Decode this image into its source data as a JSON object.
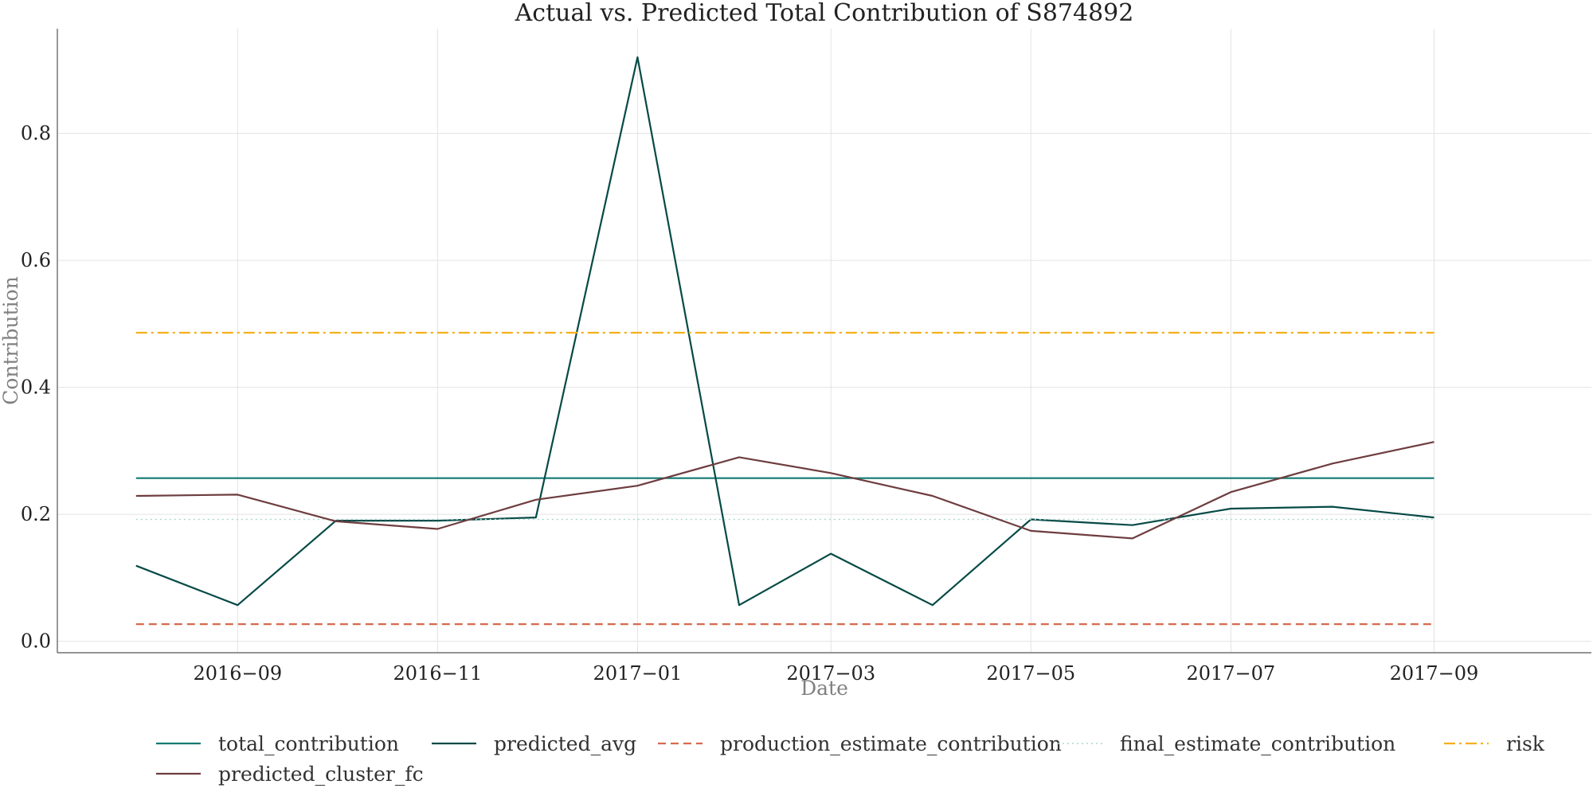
{
  "chart_data": {
    "type": "line",
    "title": "Actual vs. Predicted Total Contribution of S874892",
    "xlabel": "Date",
    "ylabel": "Contribution",
    "x": [
      "2016-08",
      "2016-09",
      "2016-10",
      "2016-11",
      "2016-12",
      "2017-01",
      "2017-02",
      "2017-03",
      "2017-04",
      "2017-05",
      "2017-06",
      "2017-07",
      "2017-08",
      "2017-09"
    ],
    "x_ticks": [
      "2016-09",
      "2016-11",
      "2017-01",
      "2017-03",
      "2017-05",
      "2017-07",
      "2017-09"
    ],
    "x_tick_labels": [
      "2016−09",
      "2016−11",
      "2017−01",
      "2017−03",
      "2017−05",
      "2017−07",
      "2017−09"
    ],
    "y_ticks": [
      0.0,
      0.2,
      0.4,
      0.6,
      0.8
    ],
    "y_tick_labels": [
      "0.0",
      "0.2",
      "0.4",
      "0.6",
      "0.8"
    ],
    "xlim": [
      "2016-07-08",
      "2017-10-19"
    ],
    "ylim": [
      -0.018,
      0.965
    ],
    "grid": true,
    "legend_position": "bottom",
    "series": [
      {
        "name": "total_contribution",
        "color": "#137a72",
        "dash": "solid",
        "values": [
          0.257,
          0.257,
          0.257,
          0.257,
          0.257,
          0.257,
          0.257,
          0.257,
          0.257,
          0.257,
          0.257,
          0.257,
          0.257,
          0.257
        ]
      },
      {
        "name": "predicted_avg",
        "color": "#064a46",
        "dash": "solid",
        "values": [
          0.119,
          0.057,
          0.19,
          0.19,
          0.195,
          0.92,
          0.057,
          0.138,
          0.057,
          0.192,
          0.183,
          0.209,
          0.212,
          0.195
        ]
      },
      {
        "name": "production_estimate_contribution",
        "color": "#d66a4e",
        "dash": "dashed",
        "values": [
          0.027,
          0.027,
          0.027,
          0.027,
          0.027,
          0.027,
          0.027,
          0.027,
          0.027,
          0.027,
          0.027,
          0.027,
          0.027,
          0.027
        ]
      },
      {
        "name": "final_estimate_contribution",
        "color": "#a8d8d0",
        "dash": "dotted",
        "values": [
          0.192,
          0.192,
          0.192,
          0.192,
          0.192,
          0.192,
          0.192,
          0.192,
          0.192,
          0.192,
          0.192,
          0.192,
          0.192,
          0.192
        ]
      },
      {
        "name": "risk",
        "color": "#f5b01a",
        "dash": "dashdot",
        "values": [
          0.486,
          0.486,
          0.486,
          0.486,
          0.486,
          0.486,
          0.486,
          0.486,
          0.486,
          0.486,
          0.486,
          0.486,
          0.486,
          0.486
        ]
      },
      {
        "name": "predicted_cluster_fc",
        "color": "#6e3d3f",
        "dash": "solid",
        "values": [
          0.229,
          0.231,
          0.189,
          0.177,
          0.223,
          0.245,
          0.29,
          0.265,
          0.229,
          0.174,
          0.162,
          0.235,
          0.28,
          0.314
        ]
      }
    ]
  }
}
